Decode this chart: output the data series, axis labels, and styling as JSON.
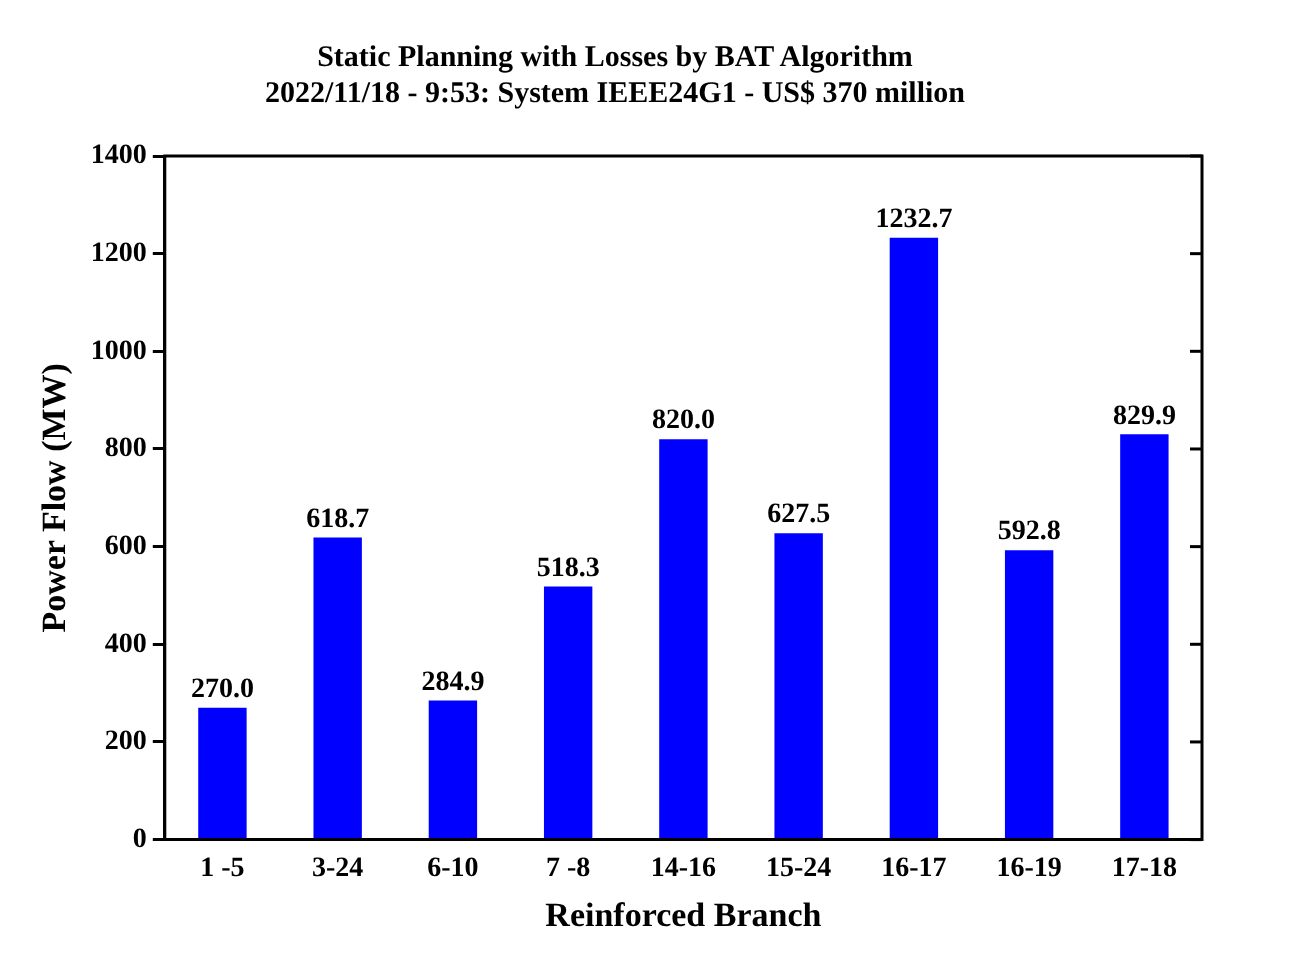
{
  "chart_data": {
    "type": "bar",
    "title": "Static Planning with Losses by BAT Algorithm",
    "subtitle": "2022/11/18 - 9:53: System IEEE24G1 - US$ 370 million",
    "xlabel": "Reinforced Branch",
    "ylabel": "Power Flow (MW)",
    "categories": [
      "1 -5",
      "3-24",
      "6-10",
      "7 -8",
      "14-16",
      "15-24",
      "16-17",
      "16-19",
      "17-18"
    ],
    "values": [
      270.0,
      618.7,
      284.9,
      518.3,
      820.0,
      627.5,
      1232.7,
      592.8,
      829.9
    ],
    "color": "#0000ff",
    "ylim": [
      0,
      1400
    ],
    "yticks": [
      0,
      200,
      400,
      600,
      800,
      1000,
      1200,
      1400
    ],
    "value_labels": [
      "270.0",
      "618.7",
      "284.9",
      "518.3",
      "820.0",
      "627.5",
      "1232.7",
      "592.8",
      "829.9"
    ],
    "grid": false,
    "legend": false
  }
}
